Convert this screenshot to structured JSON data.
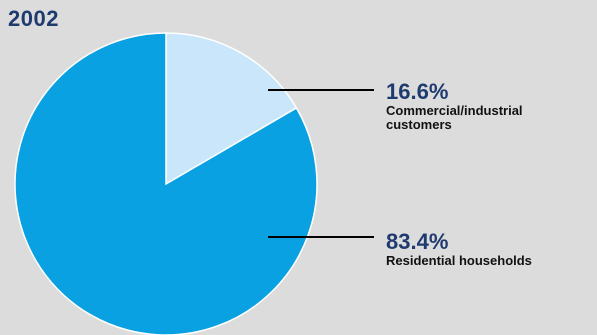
{
  "chart_data": {
    "type": "pie",
    "title": "2002",
    "slices": [
      {
        "label": "Commercial/industrial customers",
        "label_lines": [
          "Commercial/industrial",
          "customers"
        ],
        "value": 16.6,
        "display": "16.6%",
        "color": "#c9e6fa"
      },
      {
        "label": "Residential households",
        "label_lines": [
          "Residential households"
        ],
        "value": 83.4,
        "display": "83.4%",
        "color": "#0aa1e2"
      }
    ]
  }
}
